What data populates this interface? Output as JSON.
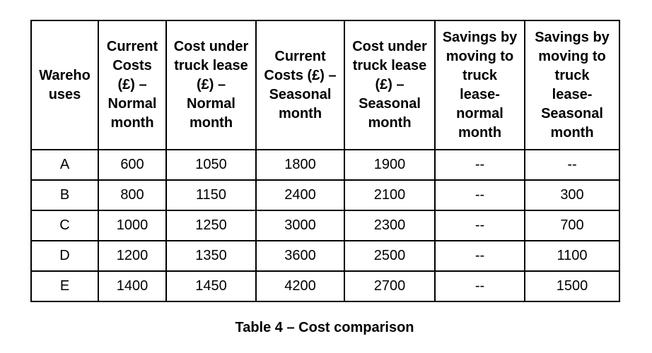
{
  "colors": {
    "text": "#000000",
    "border": "#000000",
    "background": "#ffffff"
  },
  "table": {
    "caption": "Table 4 – Cost comparison",
    "columns": [
      {
        "label": "Wareho\nuses"
      },
      {
        "label": "Current\nCosts\n(£) –\nNormal\nmonth"
      },
      {
        "label": "Cost under\ntruck lease\n(£) –\nNormal\nmonth"
      },
      {
        "label": "Current\nCosts (£) –\nSeasonal\nmonth"
      },
      {
        "label": "Cost under\ntruck lease\n(£) –\nSeasonal\nmonth"
      },
      {
        "label": "Savings by\nmoving to\ntruck\nlease-\nnormal\nmonth"
      },
      {
        "label": "Savings by\nmoving to\ntruck\nlease-\nSeasonal\nmonth"
      }
    ],
    "rows": [
      [
        "A",
        "600",
        "1050",
        "1800",
        "1900",
        "--",
        "--"
      ],
      [
        "B",
        "800",
        "1150",
        "2400",
        "2100",
        "--",
        "300"
      ],
      [
        "C",
        "1000",
        "1250",
        "3000",
        "2300",
        "--",
        "700"
      ],
      [
        "D",
        "1200",
        "1350",
        "3600",
        "2500",
        "--",
        "1100"
      ],
      [
        "E",
        "1400",
        "1450",
        "4200",
        "2700",
        "--",
        "1500"
      ]
    ]
  }
}
